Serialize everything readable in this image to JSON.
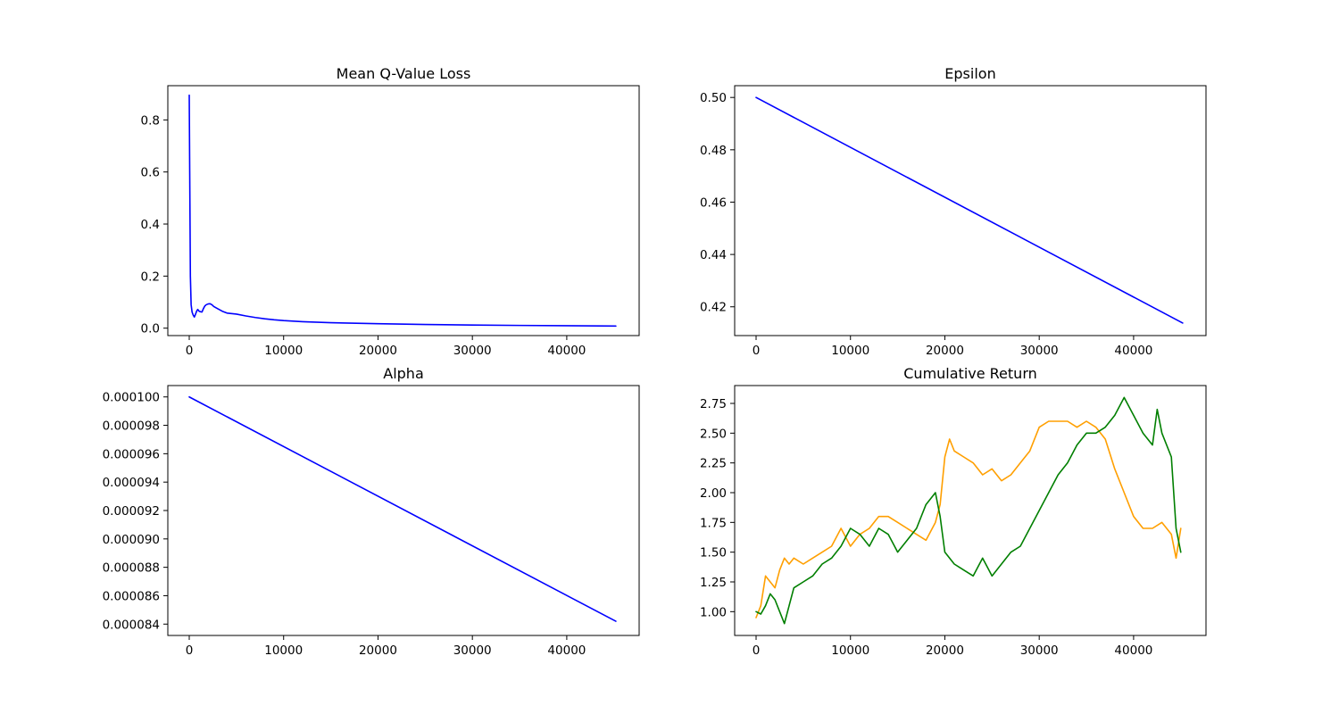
{
  "chart_data": [
    {
      "type": "line",
      "title": "Mean Q-Value Loss",
      "xlabel": "",
      "ylabel": "",
      "xlim": [
        -2270,
        47670
      ],
      "ylim": [
        -0.0285,
        0.9315
      ],
      "xticks": [
        0,
        10000,
        20000,
        30000,
        40000
      ],
      "xtick_labels": [
        "0",
        "10000",
        "20000",
        "30000",
        "40000"
      ],
      "yticks": [
        0.0,
        0.2,
        0.4,
        0.6,
        0.8
      ],
      "ytick_labels": [
        "0.0",
        "0.2",
        "0.4",
        "0.6",
        "0.8"
      ],
      "grid": false,
      "series": [
        {
          "color": "#0000ff",
          "points": [
            [
              0,
              0.895
            ],
            [
              50,
              0.6
            ],
            [
              120,
              0.2
            ],
            [
              200,
              0.09
            ],
            [
              300,
              0.062
            ],
            [
              420,
              0.05
            ],
            [
              540,
              0.043
            ],
            [
              650,
              0.052
            ],
            [
              780,
              0.065
            ],
            [
              900,
              0.072
            ],
            [
              1050,
              0.065
            ],
            [
              1200,
              0.063
            ],
            [
              1350,
              0.062
            ],
            [
              1500,
              0.075
            ],
            [
              1650,
              0.085
            ],
            [
              1800,
              0.09
            ],
            [
              2000,
              0.093
            ],
            [
              2200,
              0.094
            ],
            [
              2400,
              0.09
            ],
            [
              2600,
              0.083
            ],
            [
              3000,
              0.075
            ],
            [
              3500,
              0.065
            ],
            [
              4000,
              0.058
            ],
            [
              5000,
              0.054
            ],
            [
              6000,
              0.047
            ],
            [
              7000,
              0.041
            ],
            [
              8000,
              0.036
            ],
            [
              9000,
              0.032
            ],
            [
              10000,
              0.029
            ],
            [
              12000,
              0.025
            ],
            [
              15000,
              0.021
            ],
            [
              20000,
              0.017
            ],
            [
              25000,
              0.014
            ],
            [
              30000,
              0.012
            ],
            [
              35000,
              0.0105
            ],
            [
              40000,
              0.0095
            ],
            [
              45200,
              0.008
            ]
          ]
        }
      ]
    },
    {
      "type": "line",
      "title": "Epsilon",
      "xlabel": "",
      "ylabel": "",
      "xlim": [
        -2270,
        47670
      ],
      "ylim": [
        0.409,
        0.5045
      ],
      "xticks": [
        0,
        10000,
        20000,
        30000,
        40000
      ],
      "xtick_labels": [
        "0",
        "10000",
        "20000",
        "30000",
        "40000"
      ],
      "yticks": [
        0.42,
        0.44,
        0.46,
        0.48,
        0.5
      ],
      "ytick_labels": [
        "0.42",
        "0.44",
        "0.46",
        "0.48",
        "0.50"
      ],
      "grid": false,
      "series": [
        {
          "color": "#0000ff",
          "points": [
            [
              0,
              0.5
            ],
            [
              45200,
              0.4138
            ]
          ]
        }
      ]
    },
    {
      "type": "line",
      "title": "Alpha",
      "xlabel": "",
      "ylabel": "",
      "xlim": [
        -2270,
        47670
      ],
      "ylim": [
        8.32e-05,
        0.0001008
      ],
      "xticks": [
        0,
        10000,
        20000,
        30000,
        40000
      ],
      "xtick_labels": [
        "0",
        "10000",
        "20000",
        "30000",
        "40000"
      ],
      "yticks": [
        8.4e-05,
        8.6e-05,
        8.8e-05,
        9e-05,
        9.2e-05,
        9.4e-05,
        9.6e-05,
        9.8e-05,
        0.0001
      ],
      "ytick_labels": [
        "0.000084",
        "0.000086",
        "0.000088",
        "0.000090",
        "0.000092",
        "0.000094",
        "0.000096",
        "0.000098",
        "0.000100"
      ],
      "grid": false,
      "series": [
        {
          "color": "#0000ff",
          "points": [
            [
              0,
              0.0001
            ],
            [
              45200,
              8.42e-05
            ]
          ]
        }
      ]
    },
    {
      "type": "line",
      "title": "Cumulative Return",
      "xlabel": "",
      "ylabel": "",
      "xlim": [
        -2270,
        47670
      ],
      "ylim": [
        0.8,
        2.9
      ],
      "xticks": [
        0,
        10000,
        20000,
        30000,
        40000
      ],
      "xtick_labels": [
        "0",
        "10000",
        "20000",
        "30000",
        "40000"
      ],
      "yticks": [
        1.0,
        1.25,
        1.5,
        1.75,
        2.0,
        2.25,
        2.5,
        2.75
      ],
      "ytick_labels": [
        "1.00",
        "1.25",
        "1.50",
        "1.75",
        "2.00",
        "2.25",
        "2.50",
        "2.75"
      ],
      "grid": false,
      "series": [
        {
          "color": "#ff9f00",
          "points": [
            [
              0,
              0.95
            ],
            [
              500,
              1.05
            ],
            [
              1000,
              1.3
            ],
            [
              1500,
              1.25
            ],
            [
              2000,
              1.2
            ],
            [
              2500,
              1.35
            ],
            [
              3000,
              1.45
            ],
            [
              3500,
              1.4
            ],
            [
              4000,
              1.45
            ],
            [
              5000,
              1.4
            ],
            [
              6000,
              1.45
            ],
            [
              7000,
              1.5
            ],
            [
              8000,
              1.55
            ],
            [
              9000,
              1.7
            ],
            [
              10000,
              1.55
            ],
            [
              11000,
              1.65
            ],
            [
              12000,
              1.7
            ],
            [
              13000,
              1.8
            ],
            [
              14000,
              1.8
            ],
            [
              15000,
              1.75
            ],
            [
              16000,
              1.7
            ],
            [
              17000,
              1.65
            ],
            [
              18000,
              1.6
            ],
            [
              19000,
              1.75
            ],
            [
              19500,
              1.9
            ],
            [
              20000,
              2.3
            ],
            [
              20500,
              2.45
            ],
            [
              21000,
              2.35
            ],
            [
              22000,
              2.3
            ],
            [
              23000,
              2.25
            ],
            [
              24000,
              2.15
            ],
            [
              25000,
              2.2
            ],
            [
              26000,
              2.1
            ],
            [
              27000,
              2.15
            ],
            [
              28000,
              2.25
            ],
            [
              29000,
              2.35
            ],
            [
              30000,
              2.55
            ],
            [
              31000,
              2.6
            ],
            [
              32000,
              2.6
            ],
            [
              33000,
              2.6
            ],
            [
              34000,
              2.55
            ],
            [
              35000,
              2.6
            ],
            [
              36000,
              2.55
            ],
            [
              37000,
              2.45
            ],
            [
              38000,
              2.2
            ],
            [
              39000,
              2.0
            ],
            [
              40000,
              1.8
            ],
            [
              41000,
              1.7
            ],
            [
              42000,
              1.7
            ],
            [
              43000,
              1.75
            ],
            [
              44000,
              1.65
            ],
            [
              44500,
              1.45
            ],
            [
              45000,
              1.7
            ]
          ]
        },
        {
          "color": "#007f00",
          "points": [
            [
              0,
              1.0
            ],
            [
              500,
              0.98
            ],
            [
              1000,
              1.05
            ],
            [
              1500,
              1.15
            ],
            [
              2000,
              1.1
            ],
            [
              2500,
              1.0
            ],
            [
              3000,
              0.9
            ],
            [
              3500,
              1.05
            ],
            [
              4000,
              1.2
            ],
            [
              5000,
              1.25
            ],
            [
              6000,
              1.3
            ],
            [
              7000,
              1.4
            ],
            [
              8000,
              1.45
            ],
            [
              9000,
              1.55
            ],
            [
              10000,
              1.7
            ],
            [
              11000,
              1.65
            ],
            [
              12000,
              1.55
            ],
            [
              13000,
              1.7
            ],
            [
              14000,
              1.65
            ],
            [
              15000,
              1.5
            ],
            [
              16000,
              1.6
            ],
            [
              17000,
              1.7
            ],
            [
              18000,
              1.9
            ],
            [
              19000,
              2.0
            ],
            [
              19500,
              1.8
            ],
            [
              20000,
              1.5
            ],
            [
              21000,
              1.4
            ],
            [
              22000,
              1.35
            ],
            [
              23000,
              1.3
            ],
            [
              24000,
              1.45
            ],
            [
              25000,
              1.3
            ],
            [
              26000,
              1.4
            ],
            [
              27000,
              1.5
            ],
            [
              28000,
              1.55
            ],
            [
              29000,
              1.7
            ],
            [
              30000,
              1.85
            ],
            [
              31000,
              2.0
            ],
            [
              32000,
              2.15
            ],
            [
              33000,
              2.25
            ],
            [
              34000,
              2.4
            ],
            [
              35000,
              2.5
            ],
            [
              36000,
              2.5
            ],
            [
              37000,
              2.55
            ],
            [
              38000,
              2.65
            ],
            [
              39000,
              2.8
            ],
            [
              40000,
              2.65
            ],
            [
              41000,
              2.5
            ],
            [
              42000,
              2.4
            ],
            [
              42500,
              2.7
            ],
            [
              43000,
              2.5
            ],
            [
              44000,
              2.3
            ],
            [
              44500,
              1.7
            ],
            [
              45000,
              1.5
            ]
          ]
        }
      ]
    }
  ]
}
